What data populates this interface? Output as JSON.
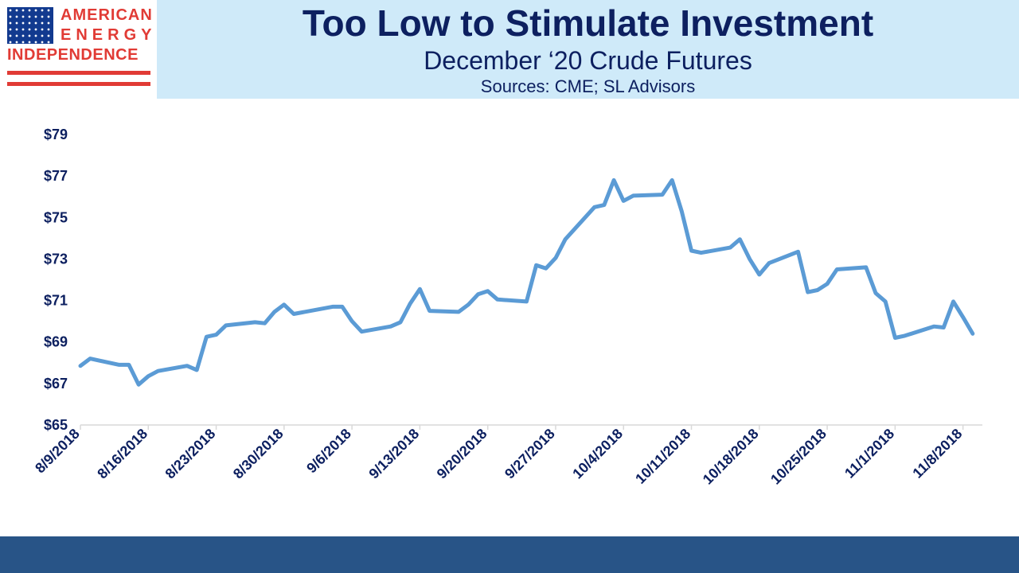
{
  "logo": {
    "line1": "AMERICAN",
    "line2": "ENERGY",
    "line3": "INDEPENDENCE"
  },
  "header": {
    "title": "Too Low to Stimulate Investment",
    "subtitle": "December ‘20 Crude Futures",
    "sources": "Sources: CME; SL Advisors"
  },
  "colors": {
    "line": "#5b9bd5",
    "text": "#0d2060",
    "header_bg": "#cfeaf9",
    "footer_bar": "#285487",
    "logo_red": "#e13b35",
    "logo_blue": "#123a8f"
  },
  "chart_data": {
    "type": "line",
    "title": "",
    "xlabel": "",
    "ylabel": "",
    "ylim": [
      65,
      79
    ],
    "y_ticks": [
      65,
      67,
      69,
      71,
      73,
      75,
      77,
      79
    ],
    "y_tick_labels": [
      "$65",
      "$67",
      "$69",
      "$71",
      "$73",
      "$75",
      "$77",
      "$79"
    ],
    "x_tick_labels": [
      "8/9/2018",
      "8/16/2018",
      "8/23/2018",
      "8/30/2018",
      "9/6/2018",
      "9/13/2018",
      "9/20/2018",
      "9/27/2018",
      "10/4/2018",
      "10/11/2018",
      "10/18/2018",
      "10/25/2018",
      "11/1/2018",
      "11/8/2018"
    ],
    "x_start": "2018-08-09",
    "x_end": "2018-11-10",
    "grid": false,
    "legend": "none",
    "series": [
      {
        "name": "",
        "points": [
          [
            "2018-08-09",
            67.85
          ],
          [
            "2018-08-10",
            68.2
          ],
          [
            "2018-08-13",
            67.9
          ],
          [
            "2018-08-14",
            67.9
          ],
          [
            "2018-08-15",
            66.95
          ],
          [
            "2018-08-16",
            67.35
          ],
          [
            "2018-08-17",
            67.6
          ],
          [
            "2018-08-20",
            67.85
          ],
          [
            "2018-08-21",
            67.65
          ],
          [
            "2018-08-22",
            69.25
          ],
          [
            "2018-08-23",
            69.35
          ],
          [
            "2018-08-24",
            69.8
          ],
          [
            "2018-08-27",
            69.95
          ],
          [
            "2018-08-28",
            69.9
          ],
          [
            "2018-08-29",
            70.45
          ],
          [
            "2018-08-30",
            70.8
          ],
          [
            "2018-08-31",
            70.35
          ],
          [
            "2018-09-04",
            70.7
          ],
          [
            "2018-09-05",
            70.7
          ],
          [
            "2018-09-06",
            70.0
          ],
          [
            "2018-09-07",
            69.5
          ],
          [
            "2018-09-10",
            69.75
          ],
          [
            "2018-09-11",
            69.95
          ],
          [
            "2018-09-12",
            70.85
          ],
          [
            "2018-09-13",
            71.55
          ],
          [
            "2018-09-14",
            70.5
          ],
          [
            "2018-09-17",
            70.45
          ],
          [
            "2018-09-18",
            70.8
          ],
          [
            "2018-09-19",
            71.3
          ],
          [
            "2018-09-20",
            71.45
          ],
          [
            "2018-09-21",
            71.05
          ],
          [
            "2018-09-24",
            70.95
          ],
          [
            "2018-09-25",
            72.7
          ],
          [
            "2018-09-26",
            72.55
          ],
          [
            "2018-09-27",
            73.05
          ],
          [
            "2018-09-28",
            73.95
          ],
          [
            "2018-10-01",
            75.5
          ],
          [
            "2018-10-02",
            75.6
          ],
          [
            "2018-10-03",
            76.8
          ],
          [
            "2018-10-04",
            75.8
          ],
          [
            "2018-10-05",
            76.05
          ],
          [
            "2018-10-08",
            76.1
          ],
          [
            "2018-10-09",
            76.8
          ],
          [
            "2018-10-10",
            75.3
          ],
          [
            "2018-10-11",
            73.4
          ],
          [
            "2018-10-12",
            73.3
          ],
          [
            "2018-10-15",
            73.55
          ],
          [
            "2018-10-16",
            73.95
          ],
          [
            "2018-10-17",
            73.0
          ],
          [
            "2018-10-18",
            72.25
          ],
          [
            "2018-10-19",
            72.8
          ],
          [
            "2018-10-22",
            73.35
          ],
          [
            "2018-10-23",
            71.4
          ],
          [
            "2018-10-24",
            71.5
          ],
          [
            "2018-10-25",
            71.8
          ],
          [
            "2018-10-26",
            72.5
          ],
          [
            "2018-10-29",
            72.6
          ],
          [
            "2018-10-30",
            71.35
          ],
          [
            "2018-10-31",
            70.95
          ],
          [
            "2018-11-01",
            69.2
          ],
          [
            "2018-11-02",
            69.3
          ],
          [
            "2018-11-05",
            69.75
          ],
          [
            "2018-11-06",
            69.7
          ],
          [
            "2018-11-07",
            70.95
          ],
          [
            "2018-11-08",
            70.2
          ],
          [
            "2018-11-09",
            69.4
          ]
        ]
      }
    ]
  }
}
